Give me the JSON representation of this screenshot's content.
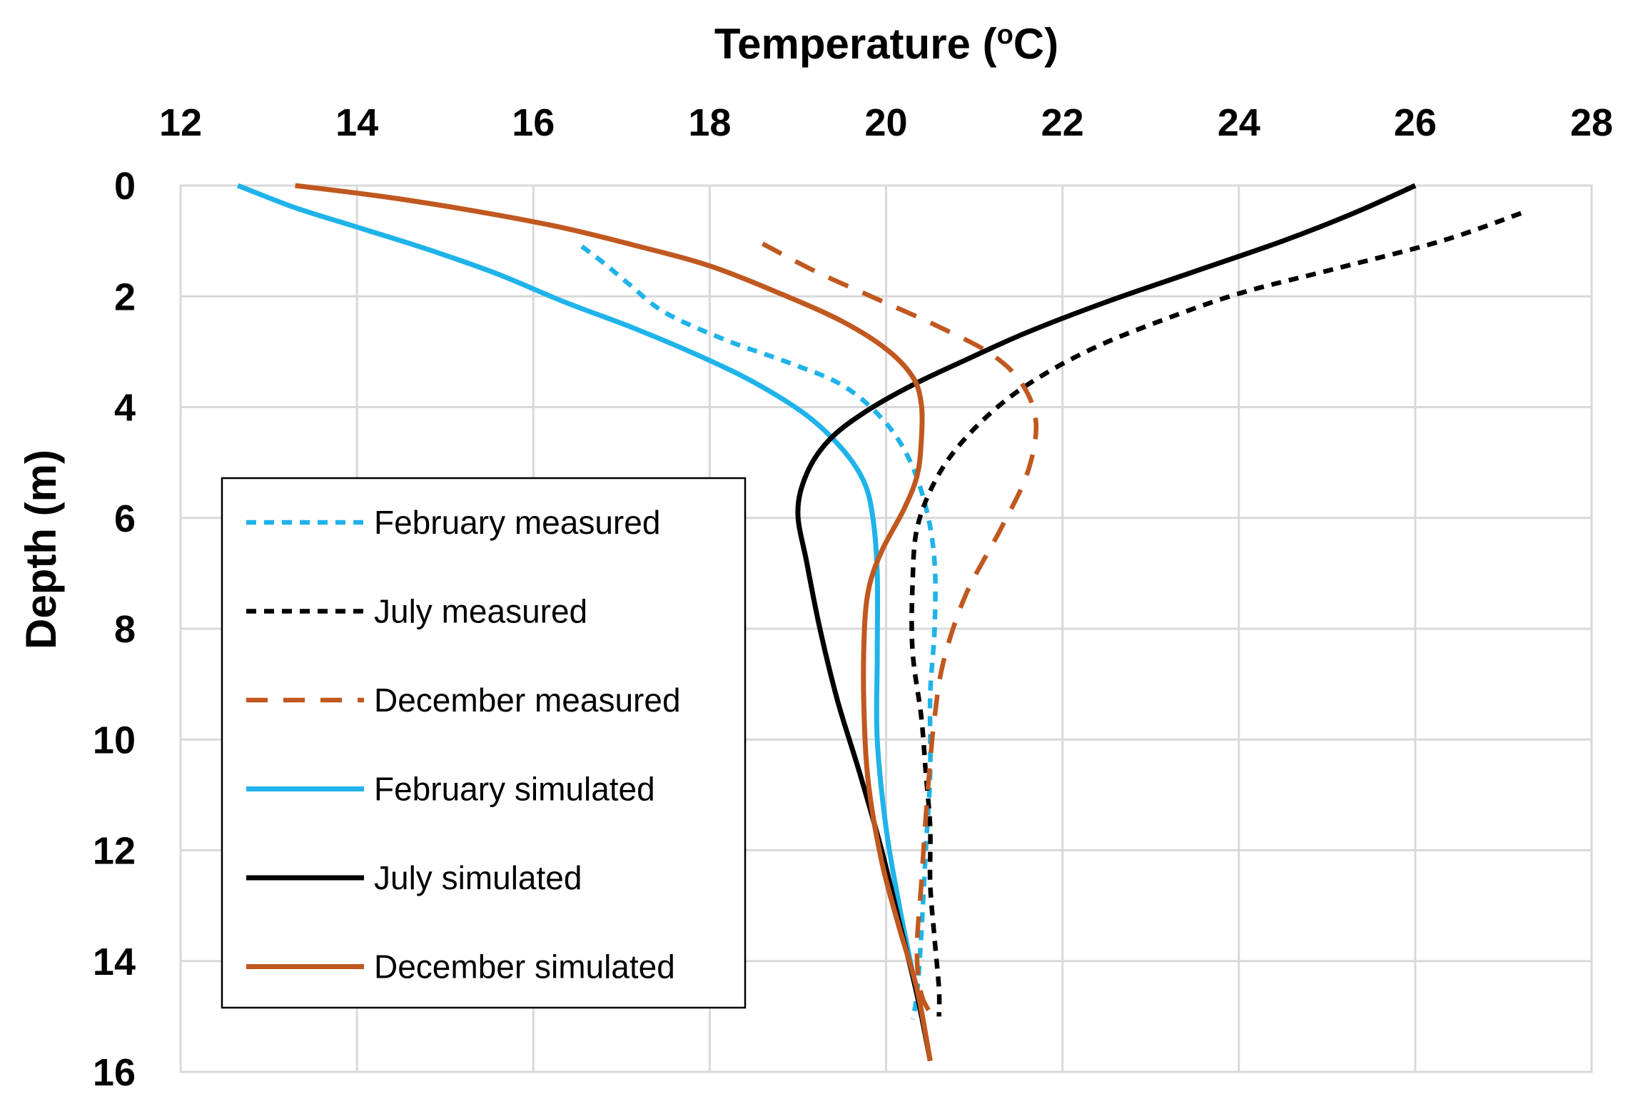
{
  "chart_data": {
    "type": "line",
    "title": "",
    "xlabel": "Temperature (",
    "xlabel_superscript": "o",
    "xlabel_unit": "C)",
    "ylabel": "Depth (m)",
    "xlim": [
      12,
      28
    ],
    "ylim": [
      16,
      0
    ],
    "x_ticks": [
      "12",
      "14",
      "16",
      "18",
      "20",
      "22",
      "24",
      "26",
      "28"
    ],
    "y_ticks": [
      "0",
      "2",
      "4",
      "6",
      "8",
      "10",
      "12",
      "14",
      "16"
    ],
    "x_tick_values": [
      12,
      14,
      16,
      18,
      20,
      22,
      24,
      26,
      28
    ],
    "y_tick_values": [
      0,
      2,
      4,
      6,
      8,
      10,
      12,
      14,
      16
    ],
    "x_axis_position": "top",
    "y_axis_direction": "downward",
    "grid": true,
    "legend_position": "left-center",
    "series": [
      {
        "name": "February measured",
        "color": "#1fb3ea",
        "style": "dotted-dash",
        "points": [
          [
            16.55,
            1.1
          ],
          [
            16.8,
            1.4
          ],
          [
            17.1,
            1.8
          ],
          [
            17.5,
            2.3
          ],
          [
            18.2,
            2.8
          ],
          [
            18.9,
            3.2
          ],
          [
            19.5,
            3.6
          ],
          [
            19.95,
            4.2
          ],
          [
            20.25,
            4.9
          ],
          [
            20.45,
            5.8
          ],
          [
            20.55,
            6.8
          ],
          [
            20.55,
            8.0
          ],
          [
            20.5,
            9.2
          ],
          [
            20.5,
            10.6
          ],
          [
            20.45,
            12.0
          ],
          [
            20.4,
            13.5
          ],
          [
            20.35,
            14.6
          ],
          [
            20.3,
            15.05
          ]
        ]
      },
      {
        "name": "July measured",
        "color": "#000000",
        "style": "dotted-dash",
        "points": [
          [
            27.2,
            0.5
          ],
          [
            26.3,
            1.0
          ],
          [
            25.1,
            1.5
          ],
          [
            24.0,
            1.95
          ],
          [
            23.1,
            2.45
          ],
          [
            22.4,
            2.9
          ],
          [
            21.8,
            3.4
          ],
          [
            21.3,
            3.95
          ],
          [
            20.85,
            4.65
          ],
          [
            20.55,
            5.35
          ],
          [
            20.35,
            6.2
          ],
          [
            20.3,
            7.2
          ],
          [
            20.3,
            8.4
          ],
          [
            20.4,
            9.6
          ],
          [
            20.45,
            10.6
          ],
          [
            20.5,
            11.6
          ],
          [
            20.5,
            12.6
          ],
          [
            20.55,
            13.6
          ],
          [
            20.6,
            14.5
          ],
          [
            20.6,
            15.0
          ]
        ]
      },
      {
        "name": "December measured",
        "color": "#c0581f",
        "style": "dash",
        "points": [
          [
            18.6,
            1.05
          ],
          [
            19.2,
            1.55
          ],
          [
            19.9,
            2.05
          ],
          [
            20.6,
            2.55
          ],
          [
            21.2,
            3.05
          ],
          [
            21.55,
            3.6
          ],
          [
            21.7,
            4.3
          ],
          [
            21.6,
            5.2
          ],
          [
            21.3,
            6.2
          ],
          [
            20.9,
            7.4
          ],
          [
            20.65,
            8.6
          ],
          [
            20.55,
            9.6
          ],
          [
            20.5,
            10.4
          ],
          [
            20.45,
            11.4
          ],
          [
            20.4,
            12.6
          ],
          [
            20.35,
            13.8
          ],
          [
            20.4,
            14.6
          ],
          [
            20.55,
            15.05
          ]
        ]
      },
      {
        "name": "February simulated",
        "color": "#1fb3ea",
        "style": "solid",
        "points": [
          [
            12.65,
            0.0
          ],
          [
            13.3,
            0.4
          ],
          [
            14.0,
            0.75
          ],
          [
            14.8,
            1.15
          ],
          [
            15.6,
            1.6
          ],
          [
            16.35,
            2.1
          ],
          [
            17.1,
            2.55
          ],
          [
            17.85,
            3.05
          ],
          [
            18.5,
            3.55
          ],
          [
            19.1,
            4.15
          ],
          [
            19.5,
            4.75
          ],
          [
            19.75,
            5.35
          ],
          [
            19.85,
            6.0
          ],
          [
            19.9,
            7.0
          ],
          [
            19.9,
            8.5
          ],
          [
            19.9,
            10.0
          ],
          [
            20.0,
            11.6
          ],
          [
            20.15,
            13.0
          ],
          [
            20.3,
            14.2
          ],
          [
            20.4,
            15.0
          ]
        ]
      },
      {
        "name": "July simulated",
        "color": "#000000",
        "style": "solid",
        "points": [
          [
            26.0,
            0.0
          ],
          [
            25.3,
            0.5
          ],
          [
            24.5,
            1.0
          ],
          [
            23.5,
            1.55
          ],
          [
            22.5,
            2.1
          ],
          [
            21.6,
            2.65
          ],
          [
            20.9,
            3.15
          ],
          [
            20.3,
            3.6
          ],
          [
            19.75,
            4.1
          ],
          [
            19.35,
            4.6
          ],
          [
            19.1,
            5.2
          ],
          [
            19.0,
            5.9
          ],
          [
            19.1,
            6.8
          ],
          [
            19.25,
            8.0
          ],
          [
            19.45,
            9.3
          ],
          [
            19.7,
            10.6
          ],
          [
            19.95,
            12.0
          ],
          [
            20.15,
            13.3
          ],
          [
            20.35,
            14.6
          ],
          [
            20.5,
            15.8
          ]
        ]
      },
      {
        "name": "December simulated",
        "color": "#c0581f",
        "style": "solid",
        "points": [
          [
            13.3,
            0.0
          ],
          [
            14.3,
            0.2
          ],
          [
            15.3,
            0.45
          ],
          [
            16.3,
            0.75
          ],
          [
            17.2,
            1.1
          ],
          [
            18.0,
            1.45
          ],
          [
            18.8,
            1.95
          ],
          [
            19.5,
            2.45
          ],
          [
            20.0,
            2.95
          ],
          [
            20.3,
            3.45
          ],
          [
            20.4,
            3.95
          ],
          [
            20.4,
            4.6
          ],
          [
            20.35,
            5.25
          ],
          [
            20.2,
            5.85
          ],
          [
            19.95,
            6.6
          ],
          [
            19.8,
            7.3
          ],
          [
            19.75,
            8.2
          ],
          [
            19.75,
            9.5
          ],
          [
            19.8,
            10.8
          ],
          [
            19.95,
            12.2
          ],
          [
            20.15,
            13.4
          ],
          [
            20.35,
            14.5
          ],
          [
            20.5,
            15.8
          ]
        ]
      }
    ]
  }
}
